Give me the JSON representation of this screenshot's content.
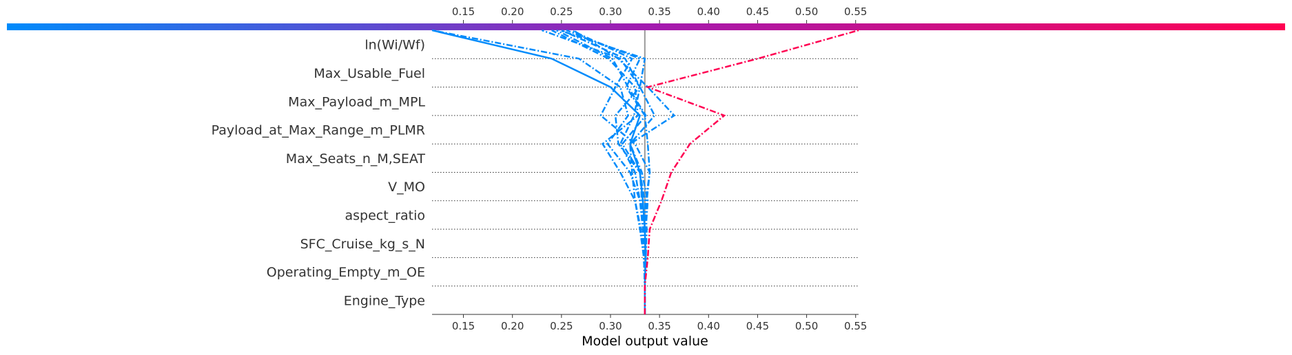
{
  "chart_data": {
    "type": "line",
    "subtype": "shap-decision-plot",
    "xlabel": "Model output value",
    "ylabel": "",
    "xlim": [
      0.118,
      0.553
    ],
    "x_ticks": [
      "0.15",
      "0.20",
      "0.25",
      "0.30",
      "0.35",
      "0.40",
      "0.45",
      "0.50",
      "0.55"
    ],
    "x_tick_values": [
      0.15,
      0.2,
      0.25,
      0.3,
      0.35,
      0.4,
      0.45,
      0.5,
      0.55
    ],
    "base_value": 0.335,
    "features": [
      "ln(Wi/Wf)",
      "Max_Usable_Fuel",
      "Max_Payload_m_MPL",
      "Payload_at_Max_Range_m_PLMR",
      "Max_Seats_n_M,SEAT",
      "V_MO",
      "aspect_ratio",
      "SFC_Cruise_kg_s_N",
      "Operating_Empty_m_OE",
      "Engine_Type"
    ],
    "colorbar": {
      "low_color": "#008bfb",
      "mid_color": "#a21bb0",
      "high_color": "#ff0052"
    },
    "grid": "dotted horizontal separators",
    "series": [
      {
        "color": "#ff0052",
        "style": "dash-dot",
        "values": [
          0.335,
          0.335,
          0.338,
          0.34,
          0.352,
          0.362,
          0.381,
          0.416,
          0.338,
          0.45,
          0.553
        ]
      },
      {
        "color": "#008bfb",
        "style": "solid",
        "values": [
          0.335,
          0.335,
          0.336,
          0.335,
          0.333,
          0.33,
          0.32,
          0.33,
          0.3,
          0.24,
          0.118
        ]
      },
      {
        "color": "#008bfb",
        "style": "dash-dot",
        "values": [
          0.335,
          0.335,
          0.336,
          0.334,
          0.33,
          0.32,
          0.297,
          0.318,
          0.31,
          0.268,
          0.118
        ]
      },
      {
        "color": "#008bfb",
        "style": "dash-dot",
        "values": [
          0.335,
          0.335,
          0.334,
          0.331,
          0.325,
          0.31,
          0.292,
          0.328,
          0.325,
          0.298,
          0.24
        ]
      },
      {
        "color": "#008bfb",
        "style": "dash-dot",
        "values": [
          0.335,
          0.335,
          0.334,
          0.33,
          0.325,
          0.322,
          0.32,
          0.345,
          0.33,
          0.315,
          0.25
        ]
      },
      {
        "color": "#008bfb",
        "style": "dash-dot",
        "values": [
          0.335,
          0.335,
          0.335,
          0.334,
          0.332,
          0.33,
          0.312,
          0.336,
          0.318,
          0.302,
          0.245
        ]
      },
      {
        "color": "#008bfb",
        "style": "dash-dot",
        "values": [
          0.335,
          0.335,
          0.336,
          0.335,
          0.337,
          0.34,
          0.338,
          0.335,
          0.316,
          0.33,
          0.255
        ]
      },
      {
        "color": "#008bfb",
        "style": "dash-dot",
        "values": [
          0.335,
          0.335,
          0.335,
          0.336,
          0.338,
          0.332,
          0.32,
          0.365,
          0.338,
          0.308,
          0.262
        ]
      },
      {
        "color": "#008bfb",
        "style": "dash-dot",
        "values": [
          0.335,
          0.335,
          0.334,
          0.333,
          0.33,
          0.325,
          0.31,
          0.324,
          0.33,
          0.31,
          0.23
        ]
      },
      {
        "color": "#008bfb",
        "style": "dash-dot",
        "values": [
          0.335,
          0.335,
          0.335,
          0.334,
          0.336,
          0.34,
          0.325,
          0.29,
          0.305,
          0.322,
          0.26
        ]
      },
      {
        "color": "#008bfb",
        "style": "dash-dot",
        "values": [
          0.335,
          0.335,
          0.336,
          0.337,
          0.335,
          0.33,
          0.308,
          0.305,
          0.33,
          0.335,
          0.248
        ]
      }
    ]
  }
}
